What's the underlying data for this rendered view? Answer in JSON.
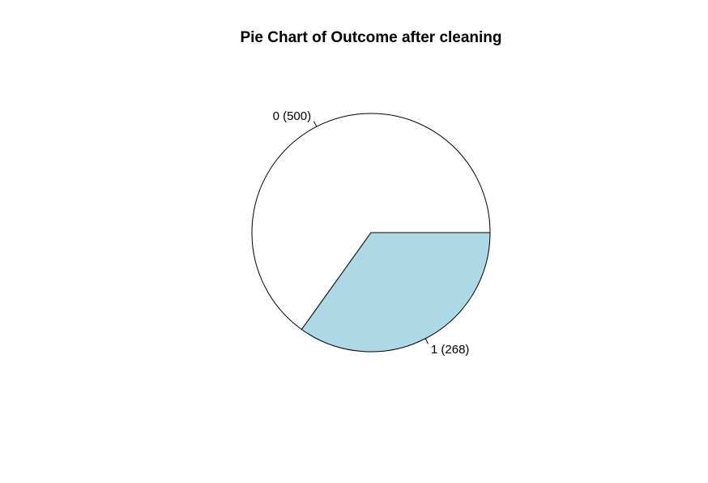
{
  "chart_data": {
    "type": "pie",
    "title": "Pie Chart of Outcome after cleaning",
    "categories": [
      "0",
      "1"
    ],
    "values": [
      500,
      268
    ],
    "labels": [
      "0 (500)",
      "1 (268)"
    ],
    "colors": [
      "#ffffff",
      "#add8e6"
    ],
    "border_color": "#000000",
    "direction": "counterclockwise",
    "start_angle_deg": 0
  }
}
